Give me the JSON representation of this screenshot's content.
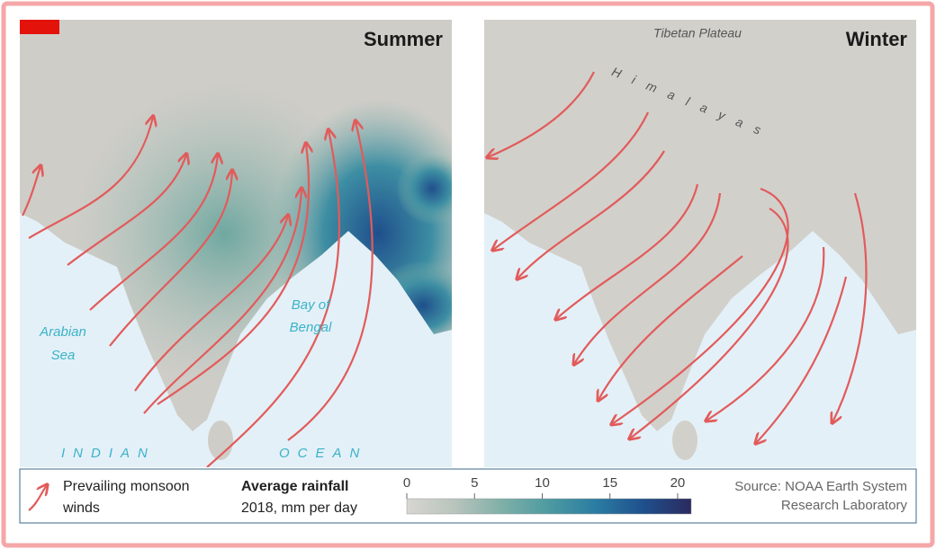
{
  "panels": [
    {
      "title": "Summer"
    },
    {
      "title": "Winter"
    }
  ],
  "map_labels": {
    "tibetan_plateau": "Tibetan Plateau",
    "himalayas": "Himalayas",
    "arabian_sea": [
      "Arabian",
      "Sea"
    ],
    "bay_of_bengal": [
      "Bay of",
      "Bengal"
    ],
    "indian": "INDIAN",
    "ocean": "OCEAN"
  },
  "legend": {
    "winds": [
      "Prevailing monsoon",
      "winds"
    ],
    "rainfall_title": "Average rainfall",
    "rainfall_subtitle": "2018, mm per day",
    "scale": {
      "lim": [
        0,
        21
      ],
      "ticks": [
        0,
        5,
        10,
        15,
        20
      ],
      "colors": [
        "#d8d6d1",
        "#b9c4bd",
        "#7fb0a8",
        "#4d9aa0",
        "#2a7ca3",
        "#1f4f8c",
        "#2b2a5e"
      ]
    }
  },
  "source": [
    "Source: NOAA Earth System",
    "Research Laboratory"
  ]
}
